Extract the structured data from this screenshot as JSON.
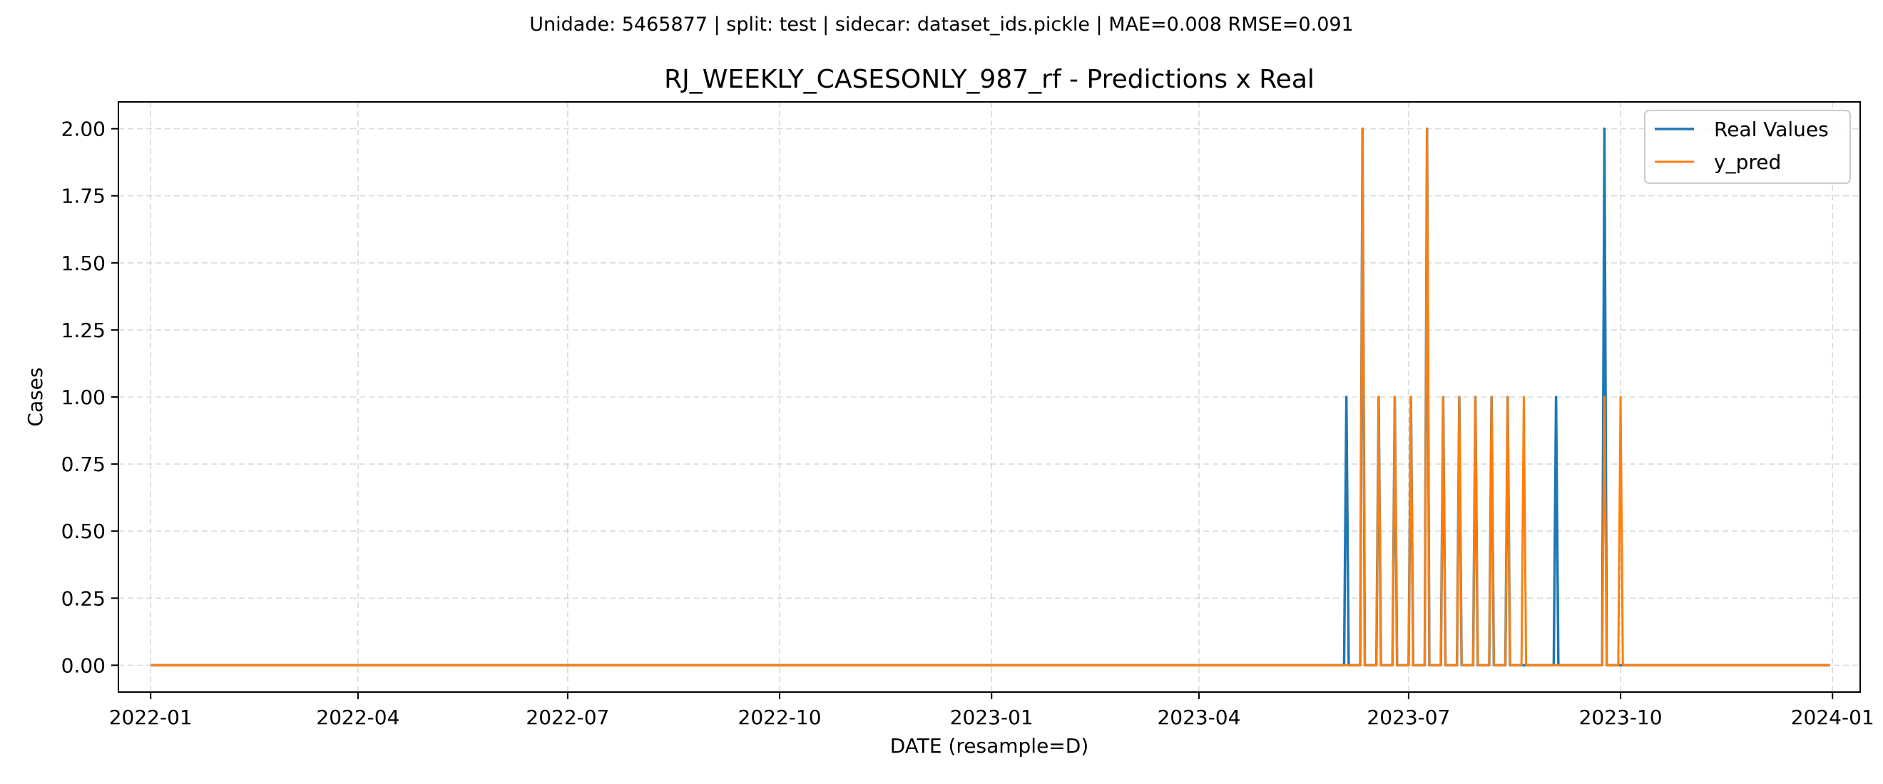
{
  "chart_data": {
    "type": "line",
    "suptitle": "Unidade: 5465877 | split: test | sidecar: dataset_ids.pickle | MAE=0.008  RMSE=0.091",
    "title": "RJ_WEEKLY_CASESONLY_987_rf - Predictions x Real",
    "xlabel": "DATE (resample=D)",
    "ylabel": "Cases",
    "x_range": [
      "2022-01-01",
      "2023-12-31"
    ],
    "xlim": [
      "2021-12-18",
      "2024-01-13"
    ],
    "ylim": [
      -0.1,
      2.1
    ],
    "x_ticks": [
      "2022-01",
      "2022-04",
      "2022-07",
      "2022-10",
      "2023-01",
      "2023-04",
      "2023-07",
      "2023-10",
      "2024-01"
    ],
    "y_ticks": [
      "0.00",
      "0.25",
      "0.50",
      "0.75",
      "1.00",
      "1.25",
      "1.50",
      "1.75",
      "2.00"
    ],
    "grid": true,
    "legend_position": "top-right",
    "baseline_value": 0,
    "series": [
      {
        "name": "Real Values",
        "color": "#1f77b4",
        "nonzero_points": [
          {
            "date": "2023-06-04",
            "value": 1
          },
          {
            "date": "2023-06-11",
            "value": 2
          },
          {
            "date": "2023-06-18",
            "value": 1
          },
          {
            "date": "2023-06-25",
            "value": 1
          },
          {
            "date": "2023-07-02",
            "value": 1
          },
          {
            "date": "2023-07-09",
            "value": 2
          },
          {
            "date": "2023-07-16",
            "value": 1
          },
          {
            "date": "2023-07-23",
            "value": 1
          },
          {
            "date": "2023-07-30",
            "value": 1
          },
          {
            "date": "2023-08-06",
            "value": 1
          },
          {
            "date": "2023-08-13",
            "value": 1
          },
          {
            "date": "2023-09-03",
            "value": 1
          },
          {
            "date": "2023-09-24",
            "value": 2
          }
        ]
      },
      {
        "name": "y_pred",
        "color": "#ff7f0e",
        "nonzero_points": [
          {
            "date": "2023-06-11",
            "value": 2
          },
          {
            "date": "2023-06-18",
            "value": 1
          },
          {
            "date": "2023-06-25",
            "value": 1
          },
          {
            "date": "2023-07-02",
            "value": 1
          },
          {
            "date": "2023-07-09",
            "value": 2
          },
          {
            "date": "2023-07-16",
            "value": 1
          },
          {
            "date": "2023-07-23",
            "value": 1
          },
          {
            "date": "2023-07-30",
            "value": 1
          },
          {
            "date": "2023-08-06",
            "value": 1
          },
          {
            "date": "2023-08-13",
            "value": 1
          },
          {
            "date": "2023-08-20",
            "value": 1
          },
          {
            "date": "2023-09-24",
            "value": 1
          },
          {
            "date": "2023-10-01",
            "value": 1
          }
        ]
      }
    ]
  }
}
